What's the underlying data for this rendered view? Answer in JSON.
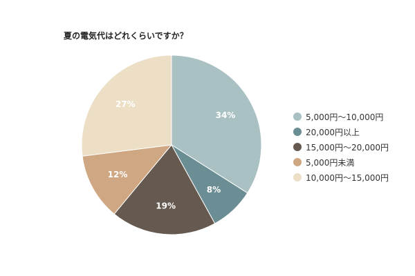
{
  "chart_data": {
    "type": "pie",
    "title": "夏の電気代はどれくらいですか？",
    "slices": [
      {
        "label": "5,000円～10,000円",
        "value": 34,
        "display": "34%",
        "color": "#a9c1c2"
      },
      {
        "label": "20,000円以上",
        "value": 8,
        "display": "8%",
        "color": "#6b8d94"
      },
      {
        "label": "15,000円～20,000円",
        "value": 19,
        "display": "19%",
        "color": "#665a50"
      },
      {
        "label": "5,000円未満",
        "value": 12,
        "display": "12%",
        "color": "#cfa783"
      },
      {
        "label": "10,000円～15,000円",
        "value": 27,
        "display": "27%",
        "color": "#ecdfc6"
      }
    ],
    "legend_position": "right",
    "start_angle": "12 o'clock",
    "direction": "clockwise"
  }
}
